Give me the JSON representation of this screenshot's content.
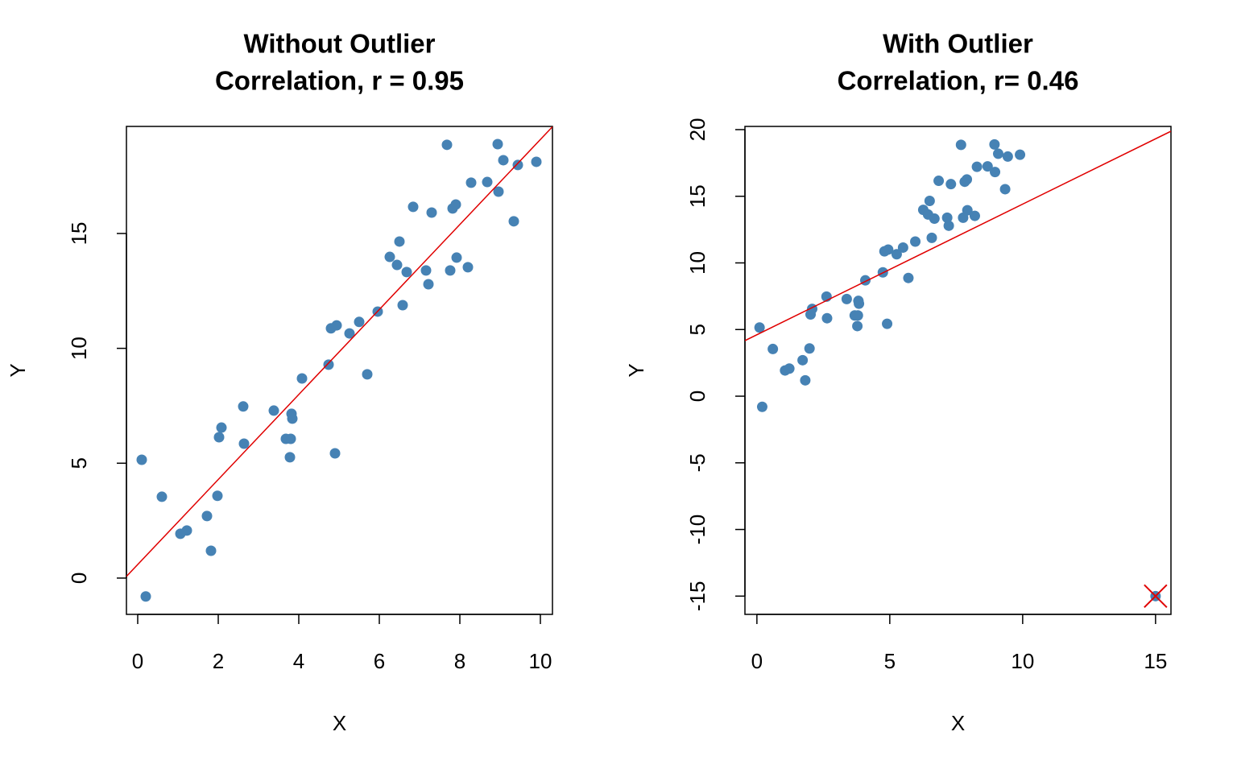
{
  "chart_data": [
    {
      "type": "scatter",
      "title": "Without Outlier",
      "subtitle": "Correlation, r = 0.95",
      "x_label": "X",
      "y_label": "Y",
      "color": "#4682b4",
      "line_color": "#e00000",
      "xlim": [
        -0.28,
        10.3
      ],
      "ylim": [
        -1.58,
        19.66
      ],
      "xticks": [
        0,
        2,
        4,
        6,
        8,
        10
      ],
      "yticks": [
        0,
        5,
        10,
        15
      ],
      "x": [
        0.1,
        0.2,
        0.6,
        1.06,
        1.22,
        1.72,
        1.82,
        1.98,
        2.02,
        2.08,
        2.62,
        2.64,
        3.38,
        3.68,
        3.8,
        3.82,
        3.84,
        3.78,
        4.08,
        4.74,
        4.8,
        4.94,
        4.9,
        5.26,
        5.5,
        5.7,
        5.96,
        6.26,
        6.44,
        6.5,
        6.58,
        6.68,
        6.84,
        7.16,
        7.22,
        7.3,
        7.68,
        7.76,
        7.82,
        7.9,
        7.92,
        8.2,
        8.28,
        8.68,
        8.94,
        8.96,
        9.08,
        9.34,
        9.44,
        9.9
      ],
      "values": [
        5.15,
        -0.8,
        3.54,
        1.93,
        2.07,
        2.7,
        1.19,
        3.58,
        6.13,
        6.55,
        7.47,
        5.85,
        7.29,
        6.06,
        6.06,
        7.15,
        6.94,
        5.26,
        8.69,
        9.29,
        10.87,
        11.0,
        5.43,
        10.65,
        11.15,
        8.87,
        11.6,
        13.98,
        13.63,
        14.65,
        11.88,
        13.32,
        16.16,
        13.39,
        12.79,
        15.91,
        18.86,
        13.39,
        16.09,
        16.26,
        13.95,
        13.53,
        17.21,
        17.24,
        18.89,
        16.82,
        18.19,
        15.53,
        17.98,
        18.12
      ],
      "fit": {
        "intercept": 0.59,
        "slope": 1.85
      }
    },
    {
      "type": "scatter",
      "title": "With Outlier",
      "subtitle": "Correlation, r= 0.46",
      "x_label": "X",
      "y_label": "Y",
      "color": "#4682b4",
      "line_color": "#e00000",
      "xlim": [
        -0.45,
        15.58
      ],
      "ylim": [
        -16.37,
        20.24
      ],
      "xticks": [
        0,
        5,
        10,
        15
      ],
      "yticks": [
        -15,
        -10,
        -5,
        0,
        5,
        10,
        15,
        20
      ],
      "x": [
        0.1,
        0.2,
        0.6,
        1.06,
        1.22,
        1.72,
        1.82,
        1.98,
        2.02,
        2.08,
        2.62,
        2.64,
        3.38,
        3.68,
        3.8,
        3.82,
        3.84,
        3.78,
        4.08,
        4.74,
        4.8,
        4.94,
        4.9,
        5.26,
        5.5,
        5.7,
        5.96,
        6.26,
        6.44,
        6.5,
        6.58,
        6.68,
        6.84,
        7.16,
        7.22,
        7.3,
        7.68,
        7.76,
        7.82,
        7.9,
        7.92,
        8.2,
        8.28,
        8.68,
        8.94,
        8.96,
        9.08,
        9.34,
        9.44,
        9.9,
        15
      ],
      "values": [
        5.15,
        -0.8,
        3.54,
        1.93,
        2.07,
        2.7,
        1.19,
        3.58,
        6.13,
        6.55,
        7.47,
        5.85,
        7.29,
        6.06,
        6.06,
        7.15,
        6.94,
        5.26,
        8.69,
        9.29,
        10.87,
        11.0,
        5.43,
        10.65,
        11.15,
        8.87,
        11.6,
        13.98,
        13.63,
        14.65,
        11.88,
        13.32,
        16.16,
        13.39,
        12.79,
        15.91,
        18.86,
        13.39,
        16.09,
        16.26,
        13.95,
        13.53,
        17.21,
        17.24,
        18.89,
        16.82,
        18.19,
        15.53,
        17.98,
        18.12,
        -15
      ],
      "outlier": {
        "x": 15,
        "y": -15,
        "color": "#e00000"
      },
      "fit": {
        "intercept": 4.61,
        "slope": 0.98
      }
    }
  ]
}
